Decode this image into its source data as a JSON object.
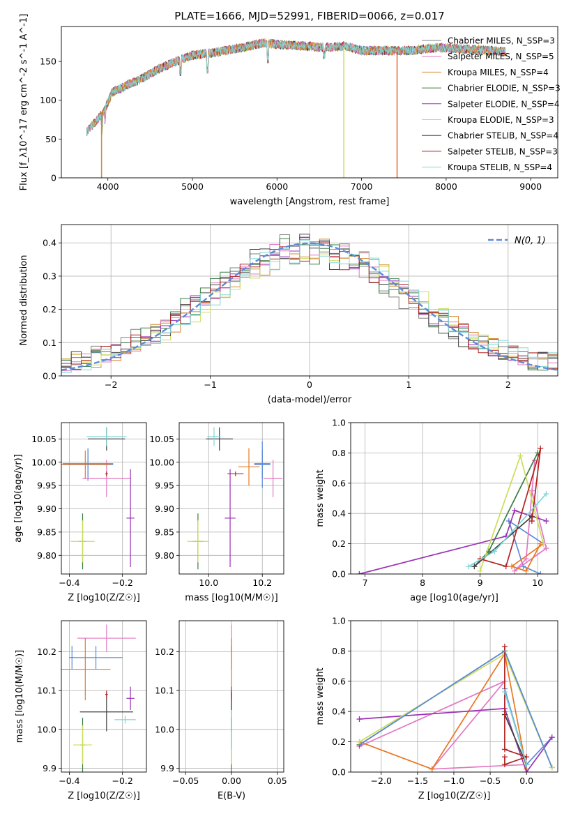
{
  "page": {
    "title": "PLATE=1666, MJD=52991, FIBERID=0066, z=0.017"
  },
  "colors": {
    "series": [
      "#808080",
      "#e377c2",
      "#d2882d",
      "#3a7d44",
      "#9b32b4",
      "#cddc5a",
      "#404040",
      "#b22222",
      "#7fd6d6"
    ],
    "gauss": "#5b8bd8",
    "grid": "#b0b0b0"
  },
  "chart_data": [
    {
      "id": "spectrum",
      "type": "line",
      "title": "PLATE=1666, MJD=52991, FIBERID=0066, z=0.017",
      "xlabel": "wavelength [Angstrom, rest frame]",
      "ylabel": "Flux [f_λ10^-17 erg cm^-2 s^-1 A^-1]",
      "xlim": [
        3450,
        9320
      ],
      "ylim": [
        0,
        195
      ],
      "xticks": [
        4000,
        5000,
        6000,
        7000,
        8000,
        9000
      ],
      "yticks": [
        0,
        50,
        100,
        150
      ],
      "grid": false,
      "legend": "top-right",
      "series": [
        {
          "name": "Chabrier MILES, N_SSP=3"
        },
        {
          "name": "Salpeter MILES, N_SSP=5"
        },
        {
          "name": "Kroupa MILES, N_SSP=4"
        },
        {
          "name": "Chabrier ELODIE, N_SSP=3"
        },
        {
          "name": "Salpeter ELODIE, N_SSP=4"
        },
        {
          "name": "Kroupa ELODIE, N_SSP=3"
        },
        {
          "name": "Chabrier STELIB, N_SSP=4"
        },
        {
          "name": "Salpeter STELIB, N_SSP=3"
        },
        {
          "name": "Kroupa STELIB, N_SSP=4"
        }
      ],
      "continuum": [
        [
          3750,
          60
        ],
        [
          3850,
          72
        ],
        [
          3950,
          85
        ],
        [
          4050,
          110
        ],
        [
          4200,
          118
        ],
        [
          4400,
          128
        ],
        [
          4600,
          140
        ],
        [
          4850,
          152
        ],
        [
          5000,
          158
        ],
        [
          5300,
          162
        ],
        [
          5600,
          168
        ],
        [
          5850,
          174
        ],
        [
          6000,
          172
        ],
        [
          6300,
          170
        ],
        [
          6600,
          168
        ],
        [
          6800,
          170
        ],
        [
          7000,
          164
        ],
        [
          7300,
          164
        ],
        [
          7600,
          164
        ],
        [
          7900,
          168
        ],
        [
          8200,
          166
        ],
        [
          8500,
          164
        ],
        [
          8700,
          163
        ]
      ]
    },
    {
      "id": "residuals",
      "type": "line",
      "xlabel": "(data-model)/error",
      "ylabel": "Normed distribution",
      "xlim": [
        -2.5,
        2.5
      ],
      "ylim": [
        0,
        0.455
      ],
      "xticks": [
        -2,
        -1,
        0,
        1,
        2
      ],
      "yticks": [
        0.0,
        0.1,
        0.2,
        0.3,
        0.4
      ],
      "grid": true,
      "legend": "top-right",
      "legend_label": "N(0, 1)",
      "bin_width": 0.1
    },
    {
      "id": "age_vs_Z",
      "type": "scatter",
      "xlabel": "Z [log10(Z/Z☉)]",
      "ylabel": "age  [log10(age/yr)]",
      "xlim": [
        -0.43,
        -0.11
      ],
      "ylim": [
        9.76,
        10.085
      ],
      "xticks": [
        -0.4,
        -0.2
      ],
      "yticks": [
        9.8,
        9.85,
        9.9,
        9.95,
        10.0,
        10.05
      ],
      "grid": true,
      "points": [
        {
          "x": -0.33,
          "y": 9.995,
          "xerr": 0.095,
          "yerr": 0.035
        },
        {
          "x": -0.26,
          "y": 9.965,
          "xerr": 0.09,
          "yerr": 0.04
        },
        {
          "x": -0.34,
          "y": 9.995,
          "xerr": 0.095,
          "yerr": 0.03
        },
        {
          "x": -0.35,
          "y": 9.83,
          "xerr": 0.015,
          "yerr": 0.06
        },
        {
          "x": -0.17,
          "y": 9.88,
          "xerr": 0.015,
          "yerr": 0.105
        },
        {
          "x": -0.35,
          "y": 9.83,
          "xerr": 0.045,
          "yerr": 0.045
        },
        {
          "x": -0.26,
          "y": 10.05,
          "xerr": 0.07,
          "yerr": 0.025
        },
        {
          "x": -0.26,
          "y": 9.975,
          "xerr": 0.005,
          "yerr": 0.005
        },
        {
          "x": -0.26,
          "y": 10.055,
          "xerr": 0.075,
          "yerr": 0.02
        },
        {
          "x": -0.33,
          "y": 9.997,
          "xerr": 0.095,
          "yerr": 0.03
        }
      ]
    },
    {
      "id": "age_vs_mass",
      "type": "scatter",
      "xlabel": "mass [log10(M/M☉)]",
      "ylabel": "",
      "xlim": [
        9.89,
        10.28
      ],
      "ylim": [
        9.76,
        10.085
      ],
      "xticks": [
        10.0,
        10.2
      ],
      "yticks": [
        9.8,
        9.85,
        9.9,
        9.95,
        10.0,
        10.05
      ],
      "grid": true,
      "points": [
        {
          "x": 10.2,
          "y": 9.995,
          "xerr": 0.03,
          "yerr": 0.05
        },
        {
          "x": 10.24,
          "y": 9.965,
          "xerr": 0.035,
          "yerr": 0.04
        },
        {
          "x": 10.15,
          "y": 9.99,
          "xerr": 0.04,
          "yerr": 0.04
        },
        {
          "x": 9.96,
          "y": 9.83,
          "xerr": 0.02,
          "yerr": 0.06
        },
        {
          "x": 10.08,
          "y": 9.88,
          "xerr": 0.02,
          "yerr": 0.105
        },
        {
          "x": 9.96,
          "y": 9.83,
          "xerr": 0.04,
          "yerr": 0.045
        },
        {
          "x": 10.04,
          "y": 10.05,
          "xerr": 0.05,
          "yerr": 0.025
        },
        {
          "x": 10.1,
          "y": 9.975,
          "xerr": 0.03,
          "yerr": 0.005
        },
        {
          "x": 10.02,
          "y": 10.055,
          "xerr": 0.025,
          "yerr": 0.02
        },
        {
          "x": 10.2,
          "y": 9.997,
          "xerr": 0.03,
          "yerr": 0.03
        }
      ]
    },
    {
      "id": "weight_vs_age",
      "type": "line",
      "xlabel": "age  [log10(age/yr)]",
      "ylabel": "mass weight",
      "xlim": [
        6.75,
        10.35
      ],
      "ylim": [
        0,
        1.0
      ],
      "xticks": [
        7,
        8,
        9,
        10
      ],
      "yticks": [
        0.0,
        0.2,
        0.4,
        0.6,
        0.8,
        1.0
      ],
      "grid": true,
      "series": [
        [
          [
            10.05,
            0.0
          ],
          [
            9.75,
            0.05
          ],
          [
            9.5,
            0.35
          ],
          [
            10.1,
            0.2
          ]
        ],
        [
          [
            9.95,
            0.75
          ],
          [
            9.8,
            0.1
          ],
          [
            9.6,
            0.02
          ],
          [
            10.15,
            0.17
          ],
          [
            9.9,
            0.55
          ]
        ],
        [
          [
            10.05,
            0.2
          ],
          [
            9.8,
            0.02
          ],
          [
            9.55,
            0.05
          ],
          [
            10.1,
            0.2
          ]
        ],
        [
          [
            8.9,
            0.05
          ],
          [
            9.15,
            0.15
          ],
          [
            10.0,
            0.8
          ]
        ],
        [
          [
            6.9,
            0.0
          ],
          [
            9.45,
            0.25
          ],
          [
            9.6,
            0.42
          ],
          [
            10.15,
            0.35
          ]
        ],
        [
          [
            9.0,
            0.02
          ],
          [
            9.7,
            0.78
          ],
          [
            10.1,
            0.2
          ]
        ],
        [
          [
            8.9,
            0.05
          ],
          [
            9.9,
            0.38
          ]
        ],
        [
          [
            9.0,
            0.1
          ],
          [
            9.45,
            0.05
          ],
          [
            10.05,
            0.83
          ],
          [
            9.9,
            0.35
          ]
        ],
        [
          [
            8.8,
            0.05
          ],
          [
            9.25,
            0.15
          ],
          [
            10.15,
            0.53
          ]
        ]
      ]
    },
    {
      "id": "mass_vs_Z",
      "type": "scatter",
      "xlabel": "Z [log10(Z/Z☉)]",
      "ylabel": "mass [log10(M/M☉)]",
      "xlim": [
        -0.43,
        -0.11
      ],
      "ylim": [
        9.89,
        10.28
      ],
      "xticks": [
        -0.4,
        -0.2
      ],
      "yticks": [
        9.9,
        10.0,
        10.1,
        10.2
      ],
      "grid": true,
      "points": [
        {
          "x": -0.39,
          "y": 10.185,
          "xerr": 0.01,
          "yerr": 0.03
        },
        {
          "x": -0.26,
          "y": 10.235,
          "xerr": 0.11,
          "yerr": 0.035
        },
        {
          "x": -0.34,
          "y": 10.155,
          "xerr": 0.095,
          "yerr": 0.08
        },
        {
          "x": -0.35,
          "y": 9.96,
          "xerr": 0.01,
          "yerr": 0.07
        },
        {
          "x": -0.17,
          "y": 10.08,
          "xerr": 0.015,
          "yerr": 0.03
        },
        {
          "x": -0.35,
          "y": 9.96,
          "xerr": 0.035,
          "yerr": 0.05
        },
        {
          "x": -0.26,
          "y": 10.045,
          "xerr": 0.1,
          "yerr": 0.05
        },
        {
          "x": -0.26,
          "y": 10.09,
          "xerr": 0.005,
          "yerr": 0.01
        },
        {
          "x": -0.19,
          "y": 10.025,
          "xerr": 0.04,
          "yerr": 0.01
        },
        {
          "x": -0.3,
          "y": 10.185,
          "xerr": 0.1,
          "yerr": 0.03
        }
      ]
    },
    {
      "id": "mass_vs_ebv",
      "type": "scatter",
      "xlabel": "E(B-V)",
      "ylabel": "",
      "xlim": [
        -0.057,
        0.057
      ],
      "ylim": [
        9.89,
        10.28
      ],
      "xticks": [
        -0.05,
        0.0,
        0.05
      ],
      "yticks": [
        9.9,
        10.0,
        10.1,
        10.2
      ],
      "grid": true,
      "points": [
        {
          "x": 0.0,
          "y": 10.185,
          "yerr": 0.03
        },
        {
          "x": 0.0,
          "y": 10.235,
          "yerr": 0.035
        },
        {
          "x": 0.0,
          "y": 10.155,
          "yerr": 0.08
        },
        {
          "x": 0.0,
          "y": 9.96,
          "yerr": 0.07
        },
        {
          "x": 0.0,
          "y": 10.08,
          "yerr": 0.03
        },
        {
          "x": 0.0,
          "y": 9.96,
          "yerr": 0.05
        },
        {
          "x": 0.0,
          "y": 10.045,
          "yerr": 0.05
        },
        {
          "x": 0.0,
          "y": 10.09,
          "yerr": 0.01
        },
        {
          "x": 0.0,
          "y": 10.0,
          "yerr": 0.05
        }
      ]
    },
    {
      "id": "weight_vs_Z",
      "type": "line",
      "xlabel": "Z [log10(Z/Z☉)]",
      "ylabel": "mass weight",
      "xlim": [
        -2.42,
        0.43
      ],
      "ylim": [
        0,
        1.0
      ],
      "xticks": [
        -2.0,
        -1.5,
        -1.0,
        -0.5,
        0.0
      ],
      "yticks": [
        0.0,
        0.2,
        0.4,
        0.6,
        0.8,
        1.0
      ],
      "grid": true,
      "series": [
        [
          [
            -0.3,
            0.4
          ],
          [
            -0.3,
            0.55
          ],
          [
            0.0,
            0.05
          ],
          [
            0.35,
            0.23
          ]
        ],
        [
          [
            -2.3,
            0.17
          ],
          [
            -0.3,
            0.6
          ],
          [
            -1.3,
            0.02
          ],
          [
            0.0,
            0.05
          ]
        ],
        [
          [
            -2.3,
            0.2
          ],
          [
            -1.3,
            0.02
          ],
          [
            -0.3,
            0.78
          ],
          [
            0.0,
            0.02
          ]
        ],
        [
          [
            -2.3,
            0.18
          ],
          [
            -0.3,
            0.8
          ],
          [
            0.35,
            0.03
          ]
        ],
        [
          [
            -2.3,
            0.35
          ],
          [
            -0.3,
            0.42
          ],
          [
            0.0,
            0.0
          ],
          [
            0.35,
            0.23
          ]
        ],
        [
          [
            -2.3,
            0.2
          ],
          [
            -0.3,
            0.78
          ],
          [
            0.35,
            0.03
          ]
        ],
        [
          [
            -0.3,
            0.38
          ],
          [
            0.0,
            0.05
          ]
        ],
        [
          [
            -0.3,
            0.83
          ],
          [
            -0.3,
            0.15
          ],
          [
            0.0,
            0.1
          ],
          [
            -0.3,
            0.05
          ],
          [
            -0.3,
            0.1
          ]
        ],
        [
          [
            -0.3,
            0.53
          ],
          [
            0.0,
            0.05
          ]
        ]
      ],
      "overlay_series": {
        "index": 0,
        "color": "#5b8bd8",
        "points": [
          [
            -2.3,
            0.18
          ],
          [
            -0.3,
            0.8
          ],
          [
            0.35,
            0.03
          ]
        ]
      }
    }
  ]
}
